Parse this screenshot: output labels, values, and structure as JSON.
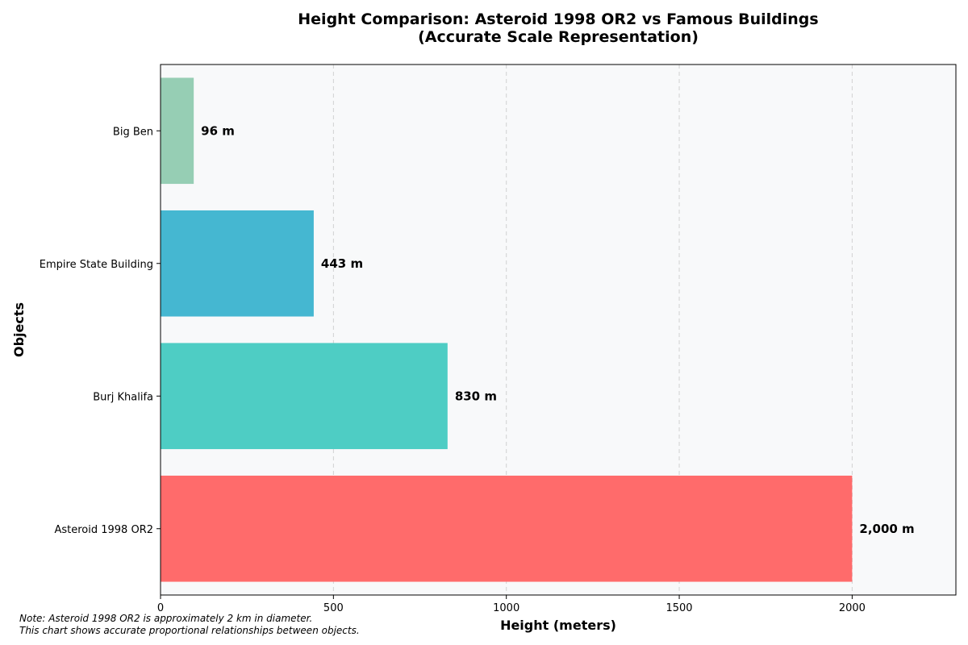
{
  "chart_data": {
    "type": "bar",
    "orientation": "horizontal",
    "title_lines": [
      "Height Comparison: Asteroid 1998 OR2 vs Famous Buildings",
      "(Accurate Scale Representation)"
    ],
    "xlabel": "Height (meters)",
    "ylabel": "Objects",
    "xlim": [
      0,
      2300
    ],
    "xticks": [
      0,
      500,
      1000,
      1500,
      2000
    ],
    "grid": "x-dashed",
    "categories": [
      "Asteroid 1998 OR2",
      "Burj Khalifa",
      "Empire State Building",
      "Big Ben"
    ],
    "values": [
      2000,
      830,
      443,
      96
    ],
    "value_labels": [
      "2,000 m",
      "830 m",
      "443 m",
      "96 m"
    ],
    "colors": [
      "#ff6b6b",
      "#4ecdc4",
      "#45b7d1",
      "#96ceb4"
    ],
    "plot_background": "#f8f9fa"
  },
  "notes": [
    "Note: Asteroid 1998 OR2 is approximately 2 km in diameter.",
    "This chart shows accurate proportional relationships between objects."
  ]
}
